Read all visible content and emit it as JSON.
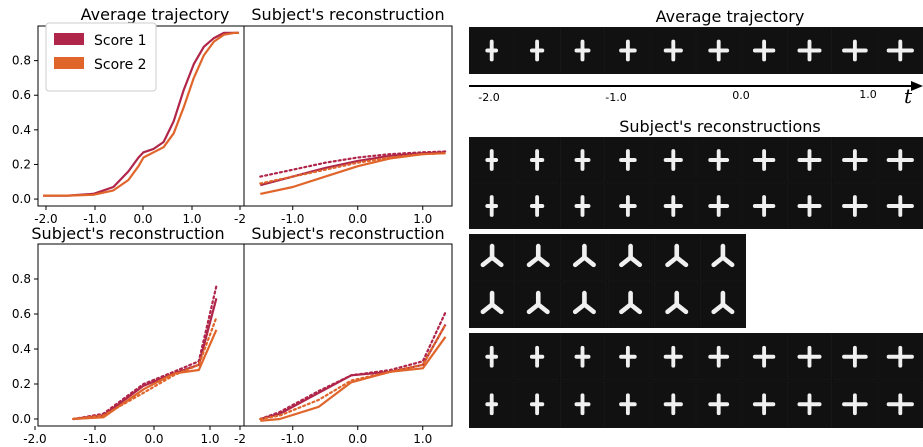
{
  "colors": {
    "score1": "#b0264a",
    "score2": "#e0652a",
    "background": "#000000",
    "glyph": "#f0f0f0"
  },
  "legend": {
    "entries": [
      "Score 1",
      "Score 2"
    ]
  },
  "right_panel": {
    "average_title": "Average trajectory",
    "reconstructions_title": "Subject's reconstructions",
    "time_ticks": [
      "-2.0",
      "-1.0",
      "0.0",
      "1.0"
    ],
    "time_symbol": "t",
    "strips": [
      {
        "rows": 1,
        "cols": 10,
        "glyph": "cross"
      },
      {
        "rows": 2,
        "cols": 10,
        "glyph": "cross"
      },
      {
        "rows": 2,
        "cols": 6,
        "glyph": "tripod"
      },
      {
        "rows": 2,
        "cols": 10,
        "glyph": "cross"
      }
    ]
  },
  "chart_data": [
    {
      "type": "line",
      "title": "Average trajectory",
      "xticks": [
        "-2.0",
        "-1.0",
        "0.0",
        "1.0",
        "-2"
      ],
      "yticks": [
        "0.0",
        "0.2",
        "0.4",
        "0.6",
        "0.8"
      ],
      "xlim": [
        -2.1,
        2.0
      ],
      "ylim": [
        -0.04,
        1.0
      ],
      "series": [
        {
          "name": "Score 1",
          "style": "solid",
          "x": [
            -2.0,
            -1.5,
            -1.0,
            -0.6,
            -0.3,
            -0.1,
            0.0,
            0.2,
            0.4,
            0.6,
            0.8,
            1.0,
            1.2,
            1.4,
            1.6,
            1.8,
            1.9
          ],
          "y": [
            0.02,
            0.02,
            0.03,
            0.07,
            0.16,
            0.24,
            0.27,
            0.29,
            0.33,
            0.45,
            0.63,
            0.78,
            0.88,
            0.93,
            0.96,
            0.96,
            0.96
          ]
        },
        {
          "name": "Score 2",
          "style": "solid",
          "x": [
            -2.0,
            -1.5,
            -1.0,
            -0.6,
            -0.3,
            -0.1,
            0.0,
            0.2,
            0.4,
            0.6,
            0.8,
            1.0,
            1.2,
            1.4,
            1.6,
            1.8,
            1.9
          ],
          "y": [
            0.02,
            0.02,
            0.025,
            0.05,
            0.11,
            0.19,
            0.24,
            0.27,
            0.3,
            0.38,
            0.53,
            0.7,
            0.83,
            0.91,
            0.95,
            0.96,
            0.96
          ]
        }
      ]
    },
    {
      "type": "line",
      "title": "Subject's reconstruction",
      "xticks": [
        "-1.0",
        "0.0",
        "1.0"
      ],
      "yticks": [],
      "xlim": [
        -1.75,
        1.45
      ],
      "ylim": [
        -0.04,
        1.0
      ],
      "series": [
        {
          "name": "Score 1",
          "style": "solid",
          "x": [
            -1.5,
            -1.0,
            -0.5,
            0.0,
            0.5,
            1.0,
            1.35
          ],
          "y": [
            0.08,
            0.13,
            0.18,
            0.22,
            0.25,
            0.265,
            0.27
          ]
        },
        {
          "name": "Score 2",
          "style": "solid",
          "x": [
            -1.5,
            -1.0,
            -0.5,
            0.0,
            0.5,
            1.0,
            1.35
          ],
          "y": [
            0.03,
            0.07,
            0.13,
            0.19,
            0.235,
            0.26,
            0.265
          ]
        },
        {
          "name": "Score 1",
          "style": "dotted",
          "x": [
            -1.5,
            -1.0,
            -0.5,
            0.0,
            0.5,
            1.0,
            1.35
          ],
          "y": [
            0.13,
            0.17,
            0.21,
            0.24,
            0.26,
            0.27,
            0.275
          ]
        },
        {
          "name": "Score 2",
          "style": "dotted",
          "x": [
            -1.5,
            -1.0,
            -0.5,
            0.0,
            0.5,
            1.0,
            1.35
          ],
          "y": [
            0.09,
            0.13,
            0.17,
            0.21,
            0.24,
            0.26,
            0.265
          ]
        }
      ]
    },
    {
      "type": "line",
      "title": "Subject's reconstruction",
      "xticks": [
        "-2.0",
        "-1.0",
        "0.0",
        "1.0",
        "-2"
      ],
      "yticks": [
        "0.0",
        "0.2",
        "0.4",
        "0.6",
        "0.8"
      ],
      "xlim": [
        -2.1,
        2.0
      ],
      "ylim": [
        -0.04,
        1.0
      ],
      "series": [
        {
          "name": "Score 1",
          "style": "solid",
          "x": [
            -1.4,
            -0.8,
            0.0,
            0.6,
            1.1,
            1.45
          ],
          "y": [
            0.0,
            0.02,
            0.19,
            0.26,
            0.31,
            0.69
          ]
        },
        {
          "name": "Score 2",
          "style": "solid",
          "x": [
            -1.4,
            -0.8,
            0.0,
            0.6,
            1.1,
            1.45
          ],
          "y": [
            0.0,
            0.01,
            0.17,
            0.26,
            0.28,
            0.51
          ]
        },
        {
          "name": "Score 1",
          "style": "dotted",
          "x": [
            -1.4,
            -0.8,
            0.0,
            0.6,
            1.1,
            1.45
          ],
          "y": [
            0.0,
            0.03,
            0.2,
            0.27,
            0.33,
            0.76
          ]
        },
        {
          "name": "Score 2",
          "style": "dotted",
          "x": [
            -1.4,
            -0.8,
            0.0,
            0.6,
            1.1,
            1.45
          ],
          "y": [
            0.0,
            0.02,
            0.15,
            0.25,
            0.31,
            0.58
          ]
        }
      ]
    },
    {
      "type": "line",
      "title": "Subject's reconstruction",
      "xticks": [
        "-1.0",
        "0.0",
        "1.0"
      ],
      "yticks": [],
      "xlim": [
        -1.75,
        1.45
      ],
      "ylim": [
        -0.04,
        1.0
      ],
      "series": [
        {
          "name": "Score 1",
          "style": "solid",
          "x": [
            -1.5,
            -1.2,
            -0.6,
            -0.1,
            0.5,
            1.0,
            1.35
          ],
          "y": [
            0.0,
            0.03,
            0.15,
            0.25,
            0.27,
            0.31,
            0.54
          ]
        },
        {
          "name": "Score 2",
          "style": "solid",
          "x": [
            -1.5,
            -1.2,
            -0.6,
            -0.1,
            0.5,
            1.0,
            1.35
          ],
          "y": [
            -0.01,
            0.0,
            0.07,
            0.21,
            0.27,
            0.29,
            0.47
          ]
        },
        {
          "name": "Score 1",
          "style": "dotted",
          "x": [
            -1.5,
            -1.2,
            -0.6,
            -0.1,
            0.5,
            1.0,
            1.35
          ],
          "y": [
            0.0,
            0.04,
            0.16,
            0.25,
            0.28,
            0.33,
            0.61
          ]
        },
        {
          "name": "Score 2",
          "style": "dotted",
          "x": [
            -1.5,
            -1.2,
            -0.6,
            -0.1,
            0.5,
            1.0,
            1.35
          ],
          "y": [
            0.0,
            0.02,
            0.11,
            0.22,
            0.27,
            0.31,
            0.54
          ]
        }
      ]
    }
  ]
}
